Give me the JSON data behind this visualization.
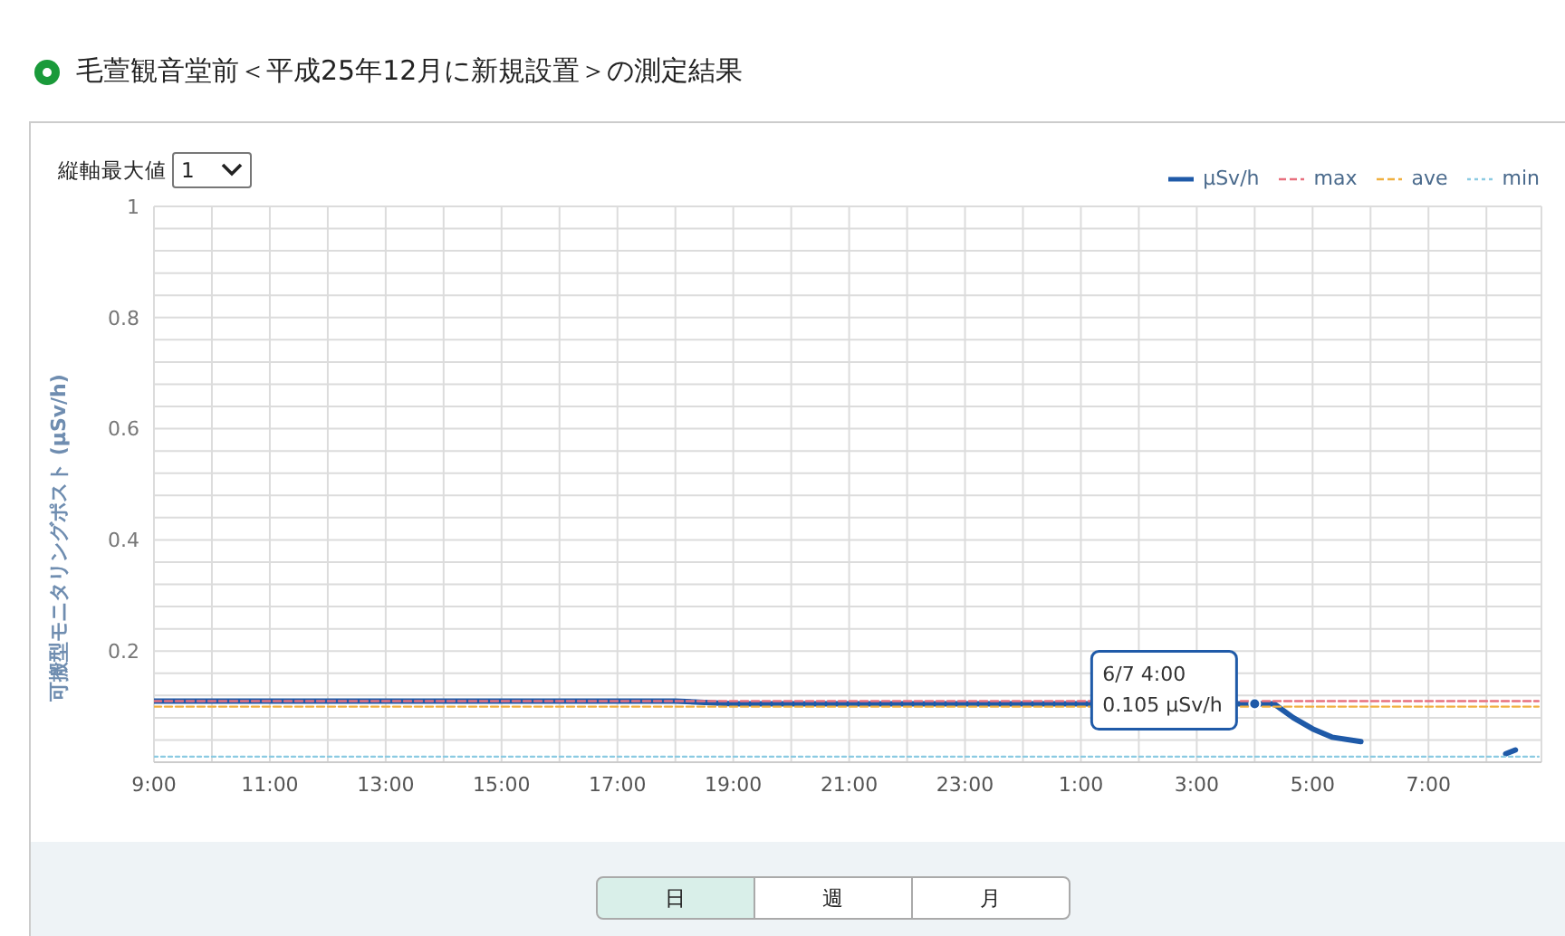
{
  "chart_data": {
    "type": "line",
    "title": "毛萱観音堂前＜平成25年12月に新規設置＞の測定結果",
    "ylabel": "可搬型モニタリングポスト (μSv/h)",
    "x": [
      "--06-06T09:00",
      "--06-06T10:00",
      "--06-06T11:00",
      "--06-06T12:00",
      "--06-06T13:00",
      "--06-06T14:00",
      "--06-06T15:00",
      "--06-06T16:00",
      "--06-06T17:00",
      "--06-06T18:00",
      "--06-06T19:00",
      "--06-06T20:00",
      "--06-06T21:00",
      "--06-06T22:00",
      "--06-06T23:00",
      "--06-07T00:00",
      "--06-07T01:00",
      "--06-07T04:00",
      "--06-07T04:20",
      "--06-07T04:40",
      "--06-07T05:00",
      "--06-07T05:20",
      "--06-07T05:50",
      "--06-07T06:30",
      "--06-07T08:20",
      "--06-07T08:30"
    ],
    "series": [
      {
        "name": "μSv/h",
        "color": "#1f5aa8",
        "line_style": "solid",
        "values": [
          0.11,
          0.11,
          0.11,
          0.11,
          0.11,
          0.11,
          0.11,
          0.11,
          0.11,
          0.11,
          0.105,
          0.105,
          0.105,
          0.105,
          0.105,
          0.105,
          0.105,
          0.105,
          0.105,
          0.08,
          0.06,
          0.045,
          0.037,
          null,
          0.015,
          0.022
        ]
      },
      {
        "name": "max",
        "color": "#e8707e",
        "line_style": "dashed",
        "x": [
          "--06-06T09:00",
          "--06-07T08:54"
        ],
        "values": [
          0.11,
          0.11
        ]
      },
      {
        "name": "ave",
        "color": "#f0b040",
        "line_style": "dashed",
        "x": [
          "--06-06T09:00",
          "--06-07T08:54"
        ],
        "values": [
          0.1,
          0.1
        ]
      },
      {
        "name": "min",
        "color": "#8ccbe2",
        "line_style": "dotted",
        "x": [
          "--06-06T09:00",
          "--06-07T08:54"
        ],
        "values": [
          0.01,
          0.01
        ]
      }
    ],
    "xlim": [
      "--06-06T09:00",
      "--06-07T08:57"
    ],
    "xticks": [
      {
        "value": "--06-06T09:00",
        "label": "9:00"
      },
      {
        "value": "--06-06T10:00",
        "label": null
      },
      {
        "value": "--06-06T11:00",
        "label": "11:00"
      },
      {
        "value": "--06-06T12:00",
        "label": null
      },
      {
        "value": "--06-06T13:00",
        "label": "13:00"
      },
      {
        "value": "--06-06T14:00",
        "label": null
      },
      {
        "value": "--06-06T15:00",
        "label": "15:00"
      },
      {
        "value": "--06-06T16:00",
        "label": null
      },
      {
        "value": "--06-06T17:00",
        "label": "17:00"
      },
      {
        "value": "--06-06T18:00",
        "label": null
      },
      {
        "value": "--06-06T19:00",
        "label": "19:00"
      },
      {
        "value": "--06-06T20:00",
        "label": null
      },
      {
        "value": "--06-06T21:00",
        "label": "21:00"
      },
      {
        "value": "--06-06T22:00",
        "label": null
      },
      {
        "value": "--06-06T23:00",
        "label": "23:00"
      },
      {
        "value": "--06-07T00:00",
        "label": null
      },
      {
        "value": "--06-07T01:00",
        "label": "1:00"
      },
      {
        "value": "--06-07T02:00",
        "label": null
      },
      {
        "value": "--06-07T03:00",
        "label": "3:00"
      },
      {
        "value": "--06-07T04:00",
        "label": null
      },
      {
        "value": "--06-07T05:00",
        "label": "5:00"
      },
      {
        "value": "--06-07T06:00",
        "label": null
      },
      {
        "value": "--06-07T07:00",
        "label": "7:00"
      },
      {
        "value": "--06-07T08:00",
        "label": null
      }
    ],
    "ylim": [
      0,
      1
    ],
    "yticks": [
      {
        "value": 0,
        "label": null
      },
      {
        "value": 0.04,
        "label": null
      },
      {
        "value": 0.08,
        "label": null
      },
      {
        "value": 0.12,
        "label": null
      },
      {
        "value": 0.16,
        "label": null
      },
      0.2,
      {
        "value": 0.24,
        "label": null
      },
      {
        "value": 0.28,
        "label": null
      },
      {
        "value": 0.32,
        "label": null
      },
      {
        "value": 0.36,
        "label": null
      },
      0.4,
      {
        "value": 0.44,
        "label": null
      },
      {
        "value": 0.48,
        "label": null
      },
      {
        "value": 0.52,
        "label": null
      },
      {
        "value": 0.56,
        "label": null
      },
      0.6,
      {
        "value": 0.64,
        "label": null
      },
      {
        "value": 0.68,
        "label": null
      },
      {
        "value": 0.72,
        "label": null
      },
      {
        "value": 0.76,
        "label": null
      },
      0.8,
      {
        "value": 0.84,
        "label": null
      },
      {
        "value": 0.88,
        "label": null
      },
      {
        "value": 0.92,
        "label": null
      },
      {
        "value": 0.96,
        "label": null
      },
      1
    ],
    "grid": true,
    "legend": "top right",
    "marker": "none",
    "annotations": [
      {
        "text": "6/7 4:00\n0.105 μSv/h",
        "x": "--06-07T04:00",
        "y": 0.105
      },
      "縦軸最大値",
      "1",
      "日",
      "週",
      "月"
    ]
  }
}
